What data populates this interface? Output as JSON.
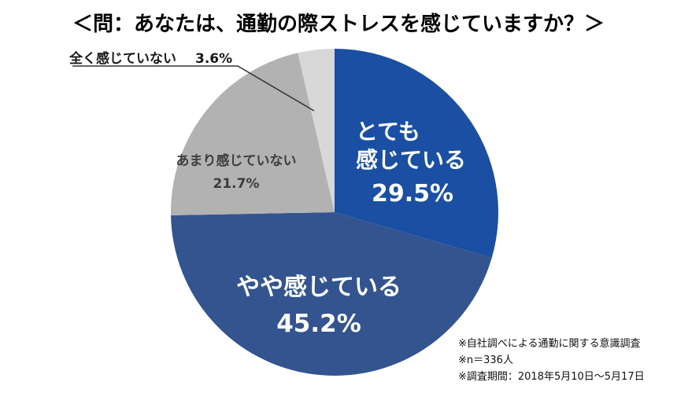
{
  "title": "＜問：あなたは、通勤の際ストレスを感じていますか？＞",
  "chart_data": {
    "type": "pie",
    "title": "＜問：あなたは、通勤の際ストレスを感じていますか？＞",
    "unit": "%",
    "start_angle_deg": 0,
    "direction": "clockwise",
    "legend_position": "none",
    "segments": [
      {
        "label": "とても感じている",
        "value": 29.5,
        "pct_label": "29.5%",
        "color": "#1a4fa3",
        "label_lines": [
          "とても",
          "感じている"
        ],
        "text_color": "#ffffff"
      },
      {
        "label": "やや感じている",
        "value": 45.2,
        "pct_label": "45.2%",
        "color": "#33548f",
        "text_color": "#ffffff"
      },
      {
        "label": "あまり感じていない",
        "value": 21.7,
        "pct_label": "21.7%",
        "color": "#b2b2b2",
        "text_color": "#3d3d3d"
      },
      {
        "label": "全く感じていない",
        "value": 3.6,
        "pct_label": "3.6%",
        "color": "#d8d8d8",
        "text_color": "#1a1a1a"
      }
    ]
  },
  "footnotes": {
    "line1": "※自社調べによる通勤に関する意識調査",
    "line2": "※n＝336人",
    "line3": "※調査期間：2018年5月10日〜5月17日"
  }
}
